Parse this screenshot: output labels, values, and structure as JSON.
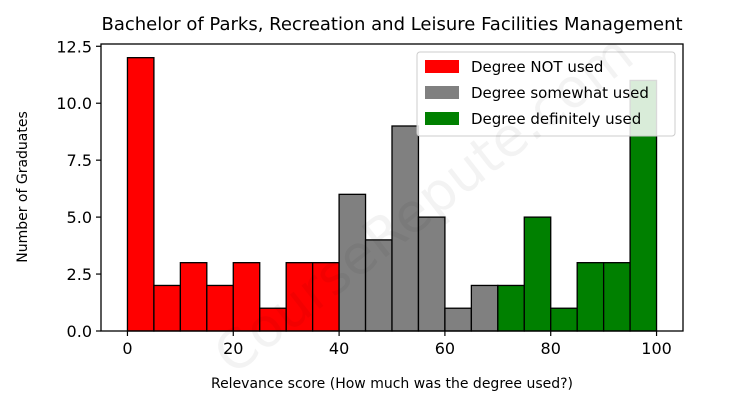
{
  "watermark": "CourseRepute.com",
  "chart_data": {
    "type": "bar",
    "title": "Bachelor of Parks, Recreation and Leisure Facilities Management",
    "xlabel": "Relevance score (How much was the degree used?)",
    "ylabel": "Number of Graduates",
    "xlim": [
      -5,
      105
    ],
    "ylim": [
      0,
      12.6
    ],
    "xticks": [
      "0",
      "20",
      "40",
      "60",
      "80",
      "100"
    ],
    "yticks": [
      "0.0",
      "2.5",
      "5.0",
      "7.5",
      "10.0",
      "12.5"
    ],
    "bin_width": 5,
    "legend_position": "top-right",
    "grid": false,
    "series": [
      {
        "name": "Degree NOT used",
        "color": "#ff0000",
        "bins": [
          [
            0,
            12
          ],
          [
            5,
            2
          ],
          [
            10,
            3
          ],
          [
            15,
            2
          ],
          [
            20,
            3
          ],
          [
            25,
            1
          ],
          [
            30,
            3
          ],
          [
            35,
            3
          ]
        ]
      },
      {
        "name": "Degree somewhat used",
        "color": "#808080",
        "bins": [
          [
            40,
            6
          ],
          [
            45,
            4
          ],
          [
            50,
            9
          ],
          [
            55,
            5
          ],
          [
            60,
            1
          ],
          [
            65,
            2
          ]
        ]
      },
      {
        "name": "Degree definitely used",
        "color": "#008000",
        "bins": [
          [
            70,
            2
          ],
          [
            75,
            5
          ],
          [
            80,
            1
          ],
          [
            85,
            3
          ],
          [
            90,
            3
          ],
          [
            95,
            11
          ]
        ]
      }
    ]
  }
}
